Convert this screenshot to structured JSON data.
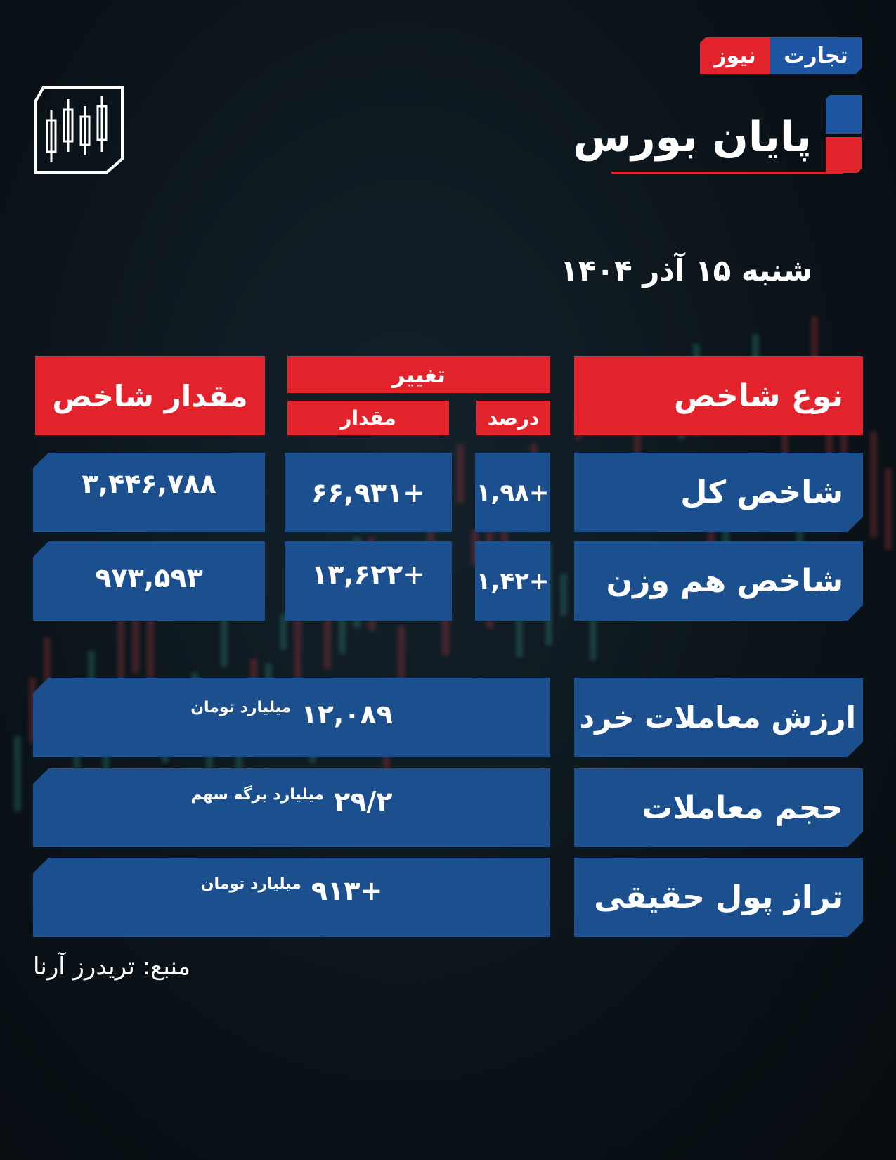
{
  "brand": {
    "logo_part1": "تجارت",
    "logo_part2": "نیوز",
    "colors": {
      "blue": "#1b4f8e",
      "red": "#e3232c"
    }
  },
  "header": {
    "title": "پایان بورس",
    "date": "شنبه ۱۵ آذر ۱۴۰۴",
    "icon": "candlestick-chart-icon"
  },
  "table": {
    "headers": {
      "index_type": "نوع شاخص",
      "change": "تغییر",
      "percent": "درصد",
      "amount": "مقدار",
      "index_value": "مقدار شاخص"
    },
    "rows": [
      {
        "name": "شاخص کل",
        "percent": "+۱,۹۸",
        "amount": "+۶۶,۹۳۱",
        "value": "۳,۴۴۶,۷۸۸"
      },
      {
        "name": "شاخص هم وزن",
        "percent": "+۱,۴۲",
        "amount": "+۱۳,۶۲۲",
        "value": "۹۷۳,۵۹۳"
      }
    ]
  },
  "stats": [
    {
      "label": "ارزش معاملات خرد",
      "value": "۱۲,۰۸۹",
      "unit": "میلیارد تومان"
    },
    {
      "label": "حجم معاملات",
      "value": "۲۹/۲",
      "unit": "میلیارد برگه سهم"
    },
    {
      "label": "تراز پول حقیقی",
      "value": "+۹۱۳",
      "unit": "میلیارد تومان"
    }
  ],
  "source": "منبع: تریدرز آرنا"
}
